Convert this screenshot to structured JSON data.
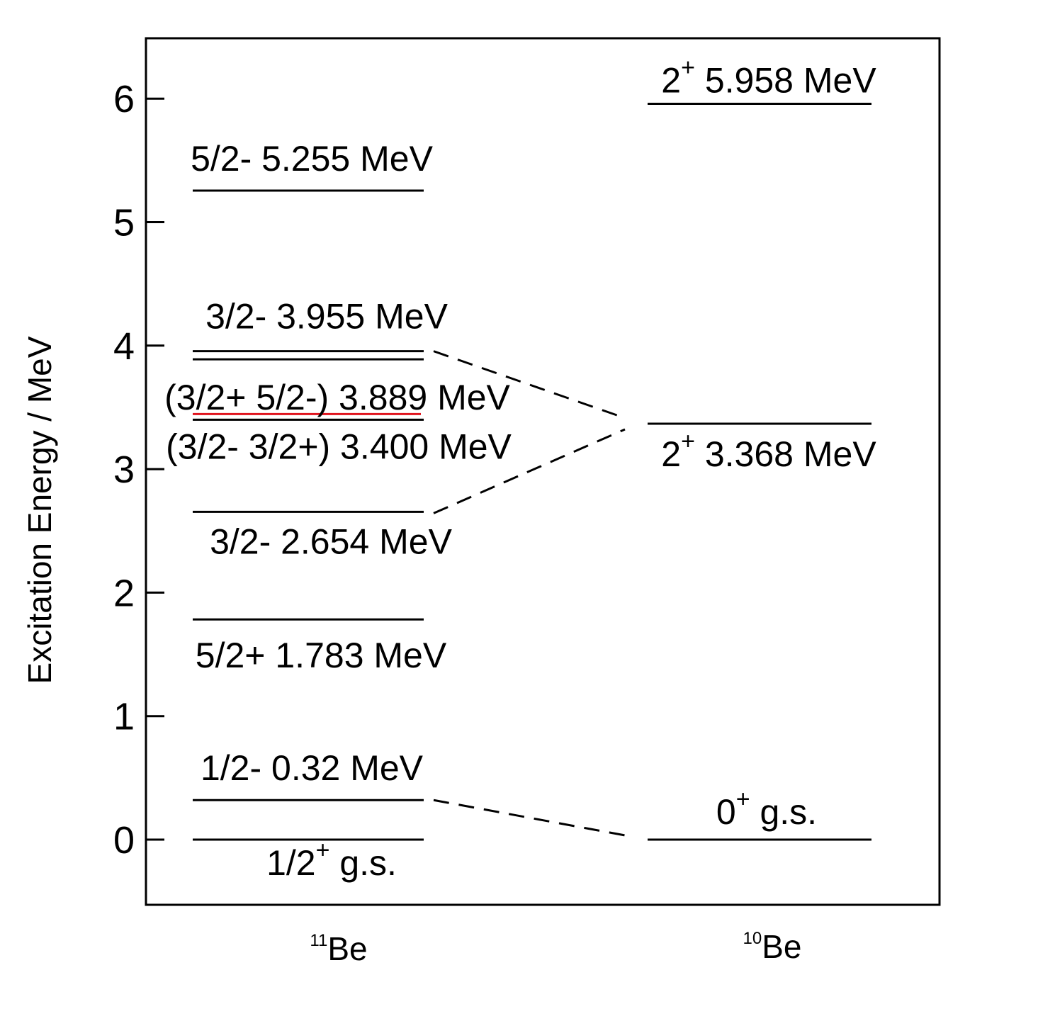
{
  "y_axis": {
    "label": "Excitation Energy / MeV",
    "ticks": [
      "0",
      "1",
      "2",
      "3",
      "4",
      "5",
      "6"
    ],
    "range": [
      -0.5,
      6.5
    ]
  },
  "columns": [
    {
      "mass": "11",
      "element": "Be"
    },
    {
      "mass": "10",
      "element": "Be"
    }
  ],
  "be11_levels": [
    {
      "energy": 0,
      "label": "1/2",
      "sup": "+",
      "suffix": " g.s."
    },
    {
      "energy": 0.32,
      "label": "1/2- 0.32 MeV"
    },
    {
      "energy": 1.783,
      "label": "5/2+ 1.783 MeV"
    },
    {
      "energy": 2.654,
      "label": "3/2- 2.654 MeV"
    },
    {
      "energy": 3.4,
      "label": "(3/2- 3/2+) 3.400 MeV",
      "highlight_color": "#e0141e"
    },
    {
      "energy": 3.889,
      "label": "(3/2+ 5/2-) 3.889 MeV"
    },
    {
      "energy": 3.955,
      "label": "3/2- 3.955 MeV"
    },
    {
      "energy": 5.255,
      "label": "5/2- 5.255 MeV"
    }
  ],
  "be10_levels": [
    {
      "energy": 0,
      "label": "0",
      "sup": "+",
      "suffix": " g.s."
    },
    {
      "energy": 3.368,
      "label": "2",
      "sup": "+",
      "suffix": " 3.368 MeV"
    },
    {
      "energy": 5.958,
      "label": "2",
      "sup": "+",
      "suffix": " 5.958 MeV"
    }
  ],
  "connections": [
    {
      "from": 0.32,
      "to": 0
    },
    {
      "from": 2.654,
      "to": 3.368
    },
    {
      "from": 3.955,
      "to": 3.368
    }
  ]
}
